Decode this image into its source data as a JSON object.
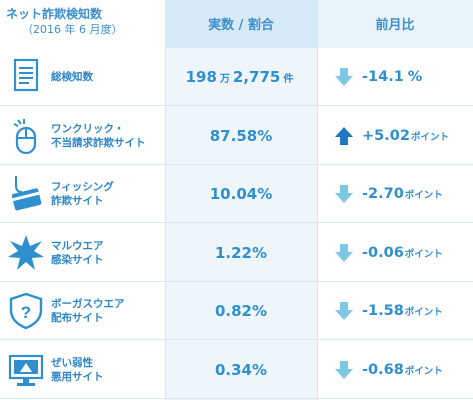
{
  "header": {
    "title": "ネット詐欺検知数",
    "subtitle": "（2016 年 6 月度）",
    "col_value": "実数 / 割合",
    "col_change": "前月比"
  },
  "colors": {
    "accent": "#2f8fcf",
    "down_arrow": "#7ec8e6",
    "up_arrow": "#1f78c2",
    "value_column_bg": "#eef6fb",
    "header_value_bg": "#d6eaf7"
  },
  "chart_data": {
    "type": "table",
    "title": "ネット詐欺検知数",
    "subtitle": "（2016 年 6 月度）",
    "columns": [
      "実数 / 割合",
      "前月比"
    ],
    "rows": [
      {
        "icon": "document-icon",
        "label_lines": [
          "総検知数"
        ],
        "value_parts": [
          "198",
          "万",
          "2,775",
          "件"
        ],
        "change": "-14.1",
        "change_unit": "%",
        "direction": "down"
      },
      {
        "icon": "mouse-click-icon",
        "label_lines": [
          "ワンクリック・",
          "不当請求詐欺サイト"
        ],
        "value": "87.58%",
        "change": "+5.02",
        "change_unit": "ポイント",
        "direction": "up"
      },
      {
        "icon": "fishing-hook-card-icon",
        "label_lines": [
          "フィッシング",
          "詐欺サイト"
        ],
        "value": "10.04%",
        "change": "-2.70",
        "change_unit": "ポイント",
        "direction": "down"
      },
      {
        "icon": "malware-burst-icon",
        "label_lines": [
          "マルウエア",
          "感染サイト"
        ],
        "value": "1.22%",
        "change": "-0.06",
        "change_unit": "ポイント",
        "direction": "down"
      },
      {
        "icon": "shield-question-icon",
        "label_lines": [
          "ボーガスウエア",
          "配布サイト"
        ],
        "value": "0.82%",
        "change": "-1.58",
        "change_unit": "ポイント",
        "direction": "down"
      },
      {
        "icon": "vulnerable-monitor-icon",
        "label_lines": [
          "ぜい弱性",
          "悪用サイト"
        ],
        "value": "0.34%",
        "change": "-0.68",
        "change_unit": "ポイント",
        "direction": "down"
      }
    ]
  }
}
